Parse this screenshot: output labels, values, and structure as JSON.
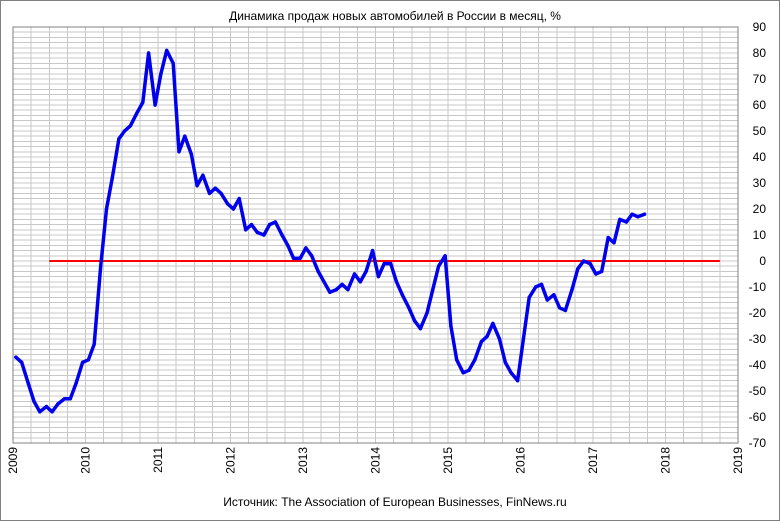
{
  "chart_data": {
    "type": "line",
    "title": "Динамика продаж новых автомобилей в России в месяц, %",
    "source": "Источник: The Association of European Businesses, FinNews.ru",
    "xlabel": "",
    "ylabel": "",
    "xlim": [
      2009,
      2019
    ],
    "ylim": [
      -70,
      90
    ],
    "x_ticks": [
      "2009",
      "2010",
      "2011",
      "2012",
      "2013",
      "2014",
      "2015",
      "2016",
      "2017",
      "2018",
      "2019"
    ],
    "y_ticks": [
      "90",
      "80",
      "70",
      "60",
      "50",
      "40",
      "30",
      "20",
      "10",
      "0",
      "-10",
      "-20",
      "-30",
      "-40",
      "-50",
      "-60",
      "-70"
    ],
    "grid": true,
    "colors": {
      "series": "#0000ee",
      "zero_line": "#ff0000",
      "grid": "#c8c8c8",
      "frame": "#808080"
    },
    "reference_line": {
      "y": 0,
      "x_from": 2009.5,
      "x_to": 2018.75
    },
    "series": [
      {
        "values": [
          [
            2009.04,
            -37
          ],
          [
            2009.12,
            -39
          ],
          [
            2009.21,
            -47
          ],
          [
            2009.29,
            -54
          ],
          [
            2009.37,
            -58
          ],
          [
            2009.46,
            -56
          ],
          [
            2009.54,
            -58
          ],
          [
            2009.62,
            -55
          ],
          [
            2009.71,
            -53
          ],
          [
            2009.79,
            -53
          ],
          [
            2009.87,
            -47
          ],
          [
            2009.96,
            -39
          ],
          [
            2010.04,
            -38
          ],
          [
            2010.12,
            -32
          ],
          [
            2010.21,
            -2
          ],
          [
            2010.29,
            20
          ],
          [
            2010.37,
            32
          ],
          [
            2010.46,
            47
          ],
          [
            2010.54,
            50
          ],
          [
            2010.62,
            52
          ],
          [
            2010.71,
            57
          ],
          [
            2010.79,
            61
          ],
          [
            2010.87,
            80
          ],
          [
            2010.96,
            60
          ],
          [
            2011.04,
            72
          ],
          [
            2011.12,
            81
          ],
          [
            2011.21,
            76
          ],
          [
            2011.29,
            42
          ],
          [
            2011.37,
            48
          ],
          [
            2011.46,
            41
          ],
          [
            2011.54,
            29
          ],
          [
            2011.62,
            33
          ],
          [
            2011.71,
            26
          ],
          [
            2011.79,
            28
          ],
          [
            2011.87,
            26
          ],
          [
            2011.96,
            22
          ],
          [
            2012.04,
            20
          ],
          [
            2012.12,
            24
          ],
          [
            2012.21,
            12
          ],
          [
            2012.29,
            14
          ],
          [
            2012.37,
            11
          ],
          [
            2012.46,
            10
          ],
          [
            2012.54,
            14
          ],
          [
            2012.62,
            15
          ],
          [
            2012.71,
            10
          ],
          [
            2012.79,
            6
          ],
          [
            2012.87,
            1
          ],
          [
            2012.96,
            1
          ],
          [
            2013.04,
            5
          ],
          [
            2013.12,
            2
          ],
          [
            2013.21,
            -4
          ],
          [
            2013.29,
            -8
          ],
          [
            2013.37,
            -12
          ],
          [
            2013.46,
            -11
          ],
          [
            2013.54,
            -9
          ],
          [
            2013.62,
            -11
          ],
          [
            2013.71,
            -5
          ],
          [
            2013.79,
            -8
          ],
          [
            2013.87,
            -4
          ],
          [
            2013.96,
            4
          ],
          [
            2014.04,
            -6
          ],
          [
            2014.12,
            -1
          ],
          [
            2014.21,
            -1
          ],
          [
            2014.29,
            -8
          ],
          [
            2014.37,
            -13
          ],
          [
            2014.46,
            -18
          ],
          [
            2014.54,
            -23
          ],
          [
            2014.62,
            -26
          ],
          [
            2014.71,
            -20
          ],
          [
            2014.79,
            -11
          ],
          [
            2014.87,
            -2
          ],
          [
            2014.96,
            2
          ],
          [
            2015.04,
            -25
          ],
          [
            2015.12,
            -38
          ],
          [
            2015.21,
            -43
          ],
          [
            2015.29,
            -42
          ],
          [
            2015.37,
            -38
          ],
          [
            2015.46,
            -31
          ],
          [
            2015.54,
            -29
          ],
          [
            2015.62,
            -24
          ],
          [
            2015.71,
            -30
          ],
          [
            2015.79,
            -39
          ],
          [
            2015.87,
            -43
          ],
          [
            2015.96,
            -46
          ],
          [
            2016.04,
            -30
          ],
          [
            2016.12,
            -14
          ],
          [
            2016.21,
            -10
          ],
          [
            2016.29,
            -9
          ],
          [
            2016.37,
            -15
          ],
          [
            2016.46,
            -13
          ],
          [
            2016.54,
            -18
          ],
          [
            2016.62,
            -19
          ],
          [
            2016.71,
            -11
          ],
          [
            2016.79,
            -3
          ],
          [
            2016.87,
            0
          ],
          [
            2016.96,
            -1
          ],
          [
            2017.04,
            -5
          ],
          [
            2017.12,
            -4
          ],
          [
            2017.21,
            9
          ],
          [
            2017.29,
            7
          ],
          [
            2017.37,
            16
          ],
          [
            2017.46,
            15
          ],
          [
            2017.54,
            18
          ],
          [
            2017.62,
            17
          ],
          [
            2017.71,
            18
          ]
        ]
      }
    ]
  }
}
